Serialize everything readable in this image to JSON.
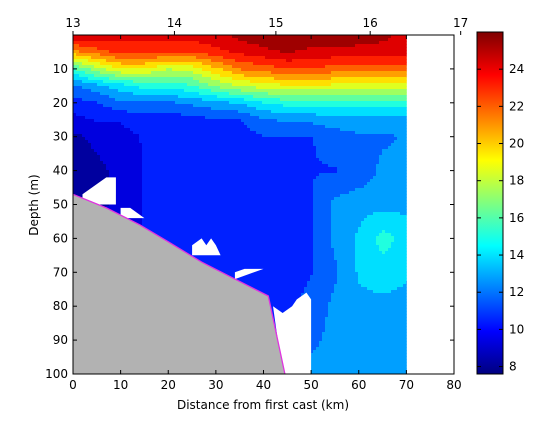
{
  "chart_data": {
    "type": "heatmap",
    "subtype": "filled-contour depth section",
    "title": "",
    "xlabel": "Distance from first cast (km)",
    "ylabel": "Depth (m)",
    "xlim": [
      0,
      80
    ],
    "ylim": [
      100,
      0
    ],
    "y_reversed": true,
    "x_ticks": [
      "0",
      "10",
      "20",
      "30",
      "40",
      "50",
      "60",
      "70",
      "80"
    ],
    "y_ticks": [
      "10",
      "20",
      "30",
      "40",
      "50",
      "60",
      "70",
      "80",
      "90",
      "100"
    ],
    "top_axis": {
      "ticks": [
        "13",
        "14",
        "15",
        "16",
        "17"
      ],
      "positions_km": [
        0,
        21.3,
        42.6,
        62.4,
        81.4
      ]
    },
    "colorbar": {
      "min": 7.6,
      "max": 26,
      "ticks": [
        "8",
        "10",
        "12",
        "14",
        "16",
        "18",
        "20",
        "22",
        "24"
      ],
      "colormap": "jet"
    },
    "data_extent_km": [
      0,
      70
    ],
    "distances_km": [
      0,
      5,
      10,
      15,
      20,
      25,
      30,
      35,
      40,
      45,
      50,
      55,
      60,
      65,
      70
    ],
    "depths_m": [
      1,
      5,
      10,
      15,
      20,
      25,
      30,
      40,
      50,
      60,
      70,
      80,
      90,
      100
    ],
    "values": [
      [
        24,
        24,
        24,
        24,
        24,
        24,
        24.5,
        25,
        25.5,
        25.7,
        25.5,
        25.4,
        25.2,
        25,
        24.5
      ],
      [
        21,
        22,
        23,
        23,
        22.6,
        22.5,
        23.3,
        24,
        24.5,
        25,
        24.5,
        24.5,
        24.5,
        24.4,
        24.3
      ],
      [
        15.5,
        17.5,
        19,
        19,
        18,
        18.5,
        20,
        21.5,
        22,
        22.5,
        22.5,
        22,
        22,
        22,
        22
      ],
      [
        12,
        13,
        14,
        15,
        15,
        15.5,
        17,
        18,
        18.5,
        19,
        19,
        18.8,
        18.5,
        18.5,
        18.5
      ],
      [
        10.5,
        11,
        12,
        12,
        12,
        12.5,
        13,
        13.5,
        14.5,
        15,
        15,
        15,
        15,
        15,
        15
      ],
      [
        9.5,
        10,
        10,
        10.5,
        10.5,
        10.5,
        11,
        11,
        12,
        12.5,
        12.5,
        13,
        13,
        13,
        13
      ],
      [
        8.5,
        9,
        9.5,
        10,
        10,
        10,
        10,
        10.5,
        11,
        11,
        11,
        11.5,
        12,
        12,
        12.3
      ],
      [
        8,
        8.5,
        9,
        10,
        10,
        10,
        10,
        10.5,
        10.5,
        10.5,
        11,
        11,
        11.3,
        12.5,
        12.5
      ],
      [
        8.5,
        8.5,
        9,
        10,
        10,
        10,
        10.5,
        10.5,
        10.5,
        10.5,
        11,
        12.5,
        13,
        13,
        13
      ],
      [
        9,
        9,
        9.5,
        10,
        10,
        10,
        10.5,
        10.5,
        10.5,
        10.7,
        11,
        12.5,
        13.5,
        15,
        14
      ],
      [
        9.5,
        9.5,
        9.5,
        10,
        10,
        10,
        10.5,
        10.5,
        10.5,
        10.5,
        11,
        12,
        13.5,
        14,
        13.5
      ],
      [
        9.5,
        9.5,
        9.5,
        10,
        10,
        10,
        10.5,
        10.5,
        10.7,
        10.7,
        11.5,
        12.5,
        13,
        13,
        13
      ],
      [
        10,
        10,
        10,
        10,
        10.5,
        10.5,
        10.5,
        10.7,
        10.7,
        11,
        12,
        12.5,
        12.5,
        12.5,
        12.5
      ],
      [
        10,
        10,
        10,
        10,
        10.5,
        10.5,
        10.5,
        10.7,
        10.7,
        11,
        12.5,
        12.5,
        12.5,
        12.5,
        12.5
      ]
    ],
    "bottom_profile": {
      "x_km": [
        0,
        7,
        14,
        20,
        27,
        34,
        41,
        44.5
      ],
      "depth_m": [
        47,
        51,
        56,
        61,
        67,
        72,
        77,
        100
      ]
    },
    "missing_data_regions": [
      {
        "x_km": [
          2,
          7,
          9,
          9,
          2
        ],
        "depth_m": [
          47,
          42,
          42,
          50,
          50
        ]
      },
      {
        "x_km": [
          10,
          12,
          15,
          10
        ],
        "depth_m": [
          51,
          51,
          54,
          54
        ]
      },
      {
        "x_km": [
          25,
          27,
          28,
          29,
          30,
          31,
          25
        ],
        "depth_m": [
          62,
          60,
          62,
          60,
          62,
          65,
          65
        ]
      },
      {
        "x_km": [
          34,
          36,
          40,
          34
        ],
        "depth_m": [
          70,
          69,
          69,
          72
        ]
      },
      {
        "x_km": [
          42,
          44,
          46,
          47,
          48,
          49,
          50,
          50,
          44,
          42
        ],
        "depth_m": [
          80,
          82,
          80,
          78,
          77,
          76,
          78,
          100,
          100,
          80
        ]
      }
    ],
    "colors": {
      "land": "#b2b2b2",
      "bottom_line": "#e033e0",
      "no_data": "#ffffff"
    }
  }
}
